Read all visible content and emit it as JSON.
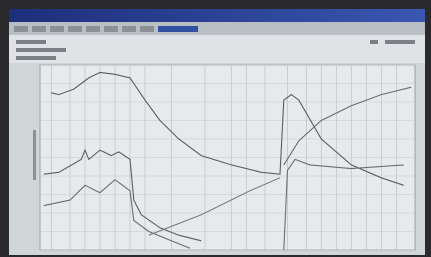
{
  "chart_data": {
    "type": "line",
    "grid": true,
    "xlim": [
      0,
      100
    ],
    "ylim": [
      0,
      100
    ],
    "xticks": [
      3,
      8,
      12,
      16,
      20,
      24,
      28,
      35,
      44,
      51,
      55,
      60,
      66,
      71,
      75,
      79,
      83,
      87,
      91,
      95
    ],
    "yticks": [
      0,
      10,
      20,
      30,
      40,
      50,
      60,
      70,
      80,
      90,
      100
    ],
    "series": [
      {
        "color": "#5a5e62",
        "x": [
          3,
          5,
          9,
          13,
          16,
          20,
          24,
          28,
          32,
          37,
          43,
          51,
          59,
          64,
          65,
          67,
          69,
          75,
          83,
          91,
          97
        ],
        "values": [
          85,
          84,
          87,
          93,
          96,
          95,
          93,
          81,
          70,
          60,
          51,
          46,
          42,
          41,
          81,
          84,
          81,
          60,
          46,
          39,
          35
        ]
      },
      {
        "color": "#6a6e72",
        "x": [
          65,
          69,
          75,
          83,
          91,
          99
        ],
        "values": [
          46,
          59,
          70,
          78,
          84,
          88
        ]
      },
      {
        "color": "#5a5e62",
        "x": [
          1,
          5,
          11,
          12,
          13,
          16,
          19,
          21,
          24,
          25,
          27,
          32,
          37,
          43
        ],
        "values": [
          41,
          42,
          49,
          54,
          49,
          54,
          51,
          53,
          49,
          27,
          19,
          12,
          8,
          5
        ]
      },
      {
        "color": "#6a6e72",
        "x": [
          1,
          8,
          12,
          16,
          20,
          24,
          25,
          29,
          35,
          40
        ],
        "values": [
          24,
          27,
          35,
          31,
          38,
          32,
          16,
          10,
          5,
          1
        ]
      },
      {
        "color": "#7a7e82",
        "x": [
          29,
          43,
          56,
          64
        ],
        "values": [
          8,
          19,
          32,
          39
        ]
      },
      {
        "color": "#6a6e72",
        "x": [
          65,
          66,
          68,
          72,
          83,
          97
        ],
        "values": [
          0,
          43,
          49,
          46,
          44,
          46
        ]
      }
    ]
  }
}
